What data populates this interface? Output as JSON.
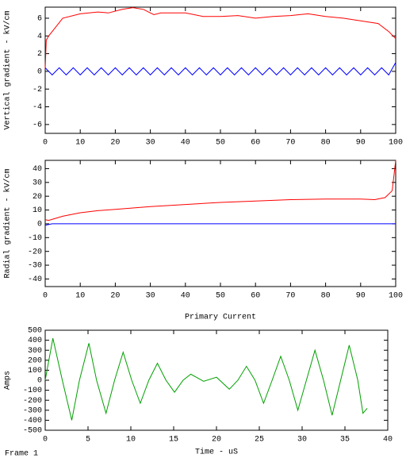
{
  "chart_data": [
    {
      "type": "line",
      "ylabel": "Vertical gradient - kV/cm",
      "xlim": [
        0,
        100
      ],
      "xticks": [
        0,
        10,
        20,
        30,
        40,
        50,
        60,
        70,
        80,
        90,
        100
      ],
      "ylim": [
        -7,
        7.25
      ],
      "yticks": [
        -6,
        -4,
        -2,
        0,
        2,
        4,
        6
      ],
      "series": [
        {
          "color": "#ff0000",
          "x": [
            0,
            0.3,
            1,
            5,
            10,
            15,
            18,
            22,
            25,
            28,
            31,
            33,
            40,
            45,
            50,
            55,
            60,
            65,
            70,
            75,
            80,
            85,
            90,
            95,
            98,
            100
          ],
          "values": [
            0.3,
            3.5,
            4,
            6,
            6.5,
            6.7,
            6.6,
            7,
            7.2,
            7,
            6.4,
            6.6,
            6.6,
            6.2,
            6.2,
            6.3,
            6,
            6.2,
            6.3,
            6.5,
            6.2,
            6,
            5.7,
            5.4,
            4.5,
            3.7
          ]
        },
        {
          "color": "#0000ff",
          "x": [
            0,
            2,
            4,
            6,
            8,
            10,
            12,
            14,
            16,
            18,
            20,
            22,
            24,
            26,
            28,
            30,
            32,
            34,
            36,
            38,
            40,
            42,
            44,
            46,
            48,
            50,
            52,
            54,
            56,
            58,
            60,
            62,
            64,
            66,
            68,
            70,
            72,
            74,
            76,
            78,
            80,
            82,
            84,
            86,
            88,
            90,
            92,
            94,
            96,
            98,
            100
          ],
          "values": [
            0.4,
            -0.4,
            0.4,
            -0.4,
            0.4,
            -0.4,
            0.4,
            -0.4,
            0.4,
            -0.4,
            0.4,
            -0.4,
            0.4,
            -0.4,
            0.4,
            -0.4,
            0.4,
            -0.4,
            0.4,
            -0.4,
            0.4,
            -0.4,
            0.4,
            -0.4,
            0.4,
            -0.4,
            0.4,
            -0.4,
            0.4,
            -0.4,
            0.4,
            -0.4,
            0.4,
            -0.4,
            0.4,
            -0.4,
            0.4,
            -0.4,
            0.4,
            -0.4,
            0.4,
            -0.4,
            0.4,
            -0.4,
            0.4,
            -0.4,
            0.4,
            -0.4,
            0.4,
            -0.4,
            1.0
          ]
        }
      ]
    },
    {
      "type": "line",
      "ylabel": "Radial gradient - kV/cm",
      "xlim": [
        0,
        100
      ],
      "xticks": [
        0,
        10,
        20,
        30,
        40,
        50,
        60,
        70,
        80,
        90,
        100
      ],
      "ylim": [
        -45.5,
        46
      ],
      "yticks": [
        -40,
        -30,
        -20,
        -10,
        0,
        10,
        20,
        30,
        40
      ],
      "series": [
        {
          "color": "#ff0000",
          "x": [
            0,
            1,
            3,
            5,
            10,
            15,
            20,
            25,
            30,
            40,
            50,
            60,
            70,
            80,
            90,
            94,
            97,
            99,
            100
          ],
          "values": [
            3,
            2.5,
            4,
            5.5,
            8,
            9.5,
            10.5,
            11.5,
            12.5,
            14,
            15.5,
            16.5,
            17.5,
            18,
            18,
            17.5,
            19,
            24,
            46
          ]
        },
        {
          "color": "#0000ff",
          "x": [
            0,
            2,
            100
          ],
          "values": [
            -1,
            0,
            0
          ]
        }
      ]
    },
    {
      "type": "line",
      "title": "Primary Current",
      "ylabel": "Amps",
      "xlabel": "Time - uS",
      "xlim": [
        0,
        40
      ],
      "xticks": [
        0,
        5,
        10,
        15,
        20,
        25,
        30,
        35,
        40
      ],
      "ylim": [
        -500,
        500
      ],
      "yticks": [
        -500,
        -400,
        -300,
        -200,
        -100,
        0,
        100,
        200,
        300,
        400,
        500
      ],
      "series": [
        {
          "color": "#00a000",
          "x": [
            0,
            0.9,
            2,
            3.1,
            4,
            5.1,
            6,
            7.1,
            8.1,
            9.1,
            10.1,
            11.1,
            12.1,
            13.1,
            14.1,
            15.1,
            16.1,
            17,
            18.5,
            20,
            21.5,
            22.5,
            23.5,
            24.5,
            25.5,
            26.5,
            27.5,
            28.5,
            29.5,
            30.5,
            31.5,
            32.5,
            33.5,
            34.5,
            35.5,
            36.5,
            37.1,
            37.6
          ],
          "values": [
            0,
            420,
            0,
            -400,
            0,
            370,
            0,
            -330,
            0,
            280,
            0,
            -230,
            0,
            170,
            0,
            -120,
            0,
            60,
            -10,
            30,
            -90,
            0,
            140,
            0,
            -230,
            0,
            240,
            0,
            -300,
            0,
            300,
            0,
            -350,
            0,
            350,
            0,
            -330,
            -280
          ]
        }
      ]
    }
  ],
  "footer": "Frame 1"
}
